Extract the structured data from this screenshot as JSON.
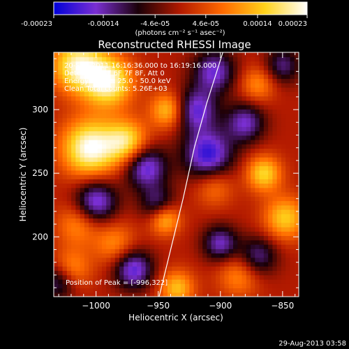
{
  "colorbar": {
    "tick_labels": [
      "-0.00023",
      "-0.00014",
      "-4.6e-05",
      "4.6e-05",
      "0.00014",
      "0.00023"
    ],
    "tick_values": [
      -0.00023,
      -0.00014,
      -4.6e-05,
      4.6e-05,
      0.00014,
      0.00023
    ],
    "range": [
      -0.00023,
      0.00023
    ],
    "units_label": "(photons cm⁻² s⁻¹ asec⁻²)",
    "colors": [
      "#0000d8",
      "#7a2fd2",
      "#1a0008",
      "#b31a00",
      "#ff6a00",
      "#ffd21a",
      "#ffffff"
    ]
  },
  "chart_data": {
    "type": "heatmap",
    "title": "Reconstructed RHESSI Image",
    "xlabel": "Heliocentric X (arcsec)",
    "ylabel": "Heliocentric Y (arcsec)",
    "xlim": [
      -1034,
      -837
    ],
    "ylim": [
      153,
      345
    ],
    "x_ticks": [
      -1000,
      -950,
      -900,
      -850
    ],
    "x_tick_labels": [
      "−1000",
      "−950",
      "−900",
      "−850"
    ],
    "y_ticks": [
      200,
      250,
      300
    ],
    "y_tick_labels": [
      "200",
      "250",
      "300"
    ],
    "annotations": [
      "20-Sep-2011 16:16:36.000 to 16:19:16.000",
      "Detectors: 4F 6F 7F 8F, Att 0",
      "Energy Range: 25.0 - 50.0 keV",
      "Clean     Total counts: 5.26E+03"
    ],
    "peak_label": "Position of Peak = [-996,322]",
    "peak": [
      -996,
      322
    ],
    "limb_curve": [
      [
        -950,
        150
      ],
      [
        -940,
        190
      ],
      [
        -930,
        230
      ],
      [
        -921,
        270
      ],
      [
        -911,
        305
      ],
      [
        -898,
        345
      ]
    ],
    "sources": [
      {
        "x": -1015,
        "y": 335,
        "amp": 0.0002,
        "s": 15
      },
      {
        "x": -990,
        "y": 322,
        "amp": 0.00021,
        "s": 14
      },
      {
        "x": -1005,
        "y": 270,
        "amp": 0.00023,
        "s": 16
      },
      {
        "x": -975,
        "y": 275,
        "amp": 0.00017,
        "s": 12
      },
      {
        "x": -942,
        "y": 300,
        "amp": 0.00015,
        "s": 10
      },
      {
        "x": -945,
        "y": 215,
        "amp": 0.00017,
        "s": 9
      },
      {
        "x": -848,
        "y": 215,
        "amp": 0.00015,
        "s": 12
      },
      {
        "x": -865,
        "y": 250,
        "amp": 0.00016,
        "s": 10
      },
      {
        "x": -935,
        "y": 160,
        "amp": 0.00014,
        "s": 10
      },
      {
        "x": -1015,
        "y": 210,
        "amp": 0.0001,
        "s": 12
      },
      {
        "x": -985,
        "y": 195,
        "amp": 0.0001,
        "s": 12
      },
      {
        "x": -1020,
        "y": 175,
        "amp": 0.00011,
        "s": 11
      },
      {
        "x": -885,
        "y": 170,
        "amp": 0.0001,
        "s": 12
      },
      {
        "x": -905,
        "y": 240,
        "amp": 9e-05,
        "s": 11
      },
      {
        "x": -870,
        "y": 320,
        "amp": 0.0001,
        "s": 10
      },
      {
        "x": -960,
        "y": 255,
        "amp": -0.00018,
        "s": 12
      },
      {
        "x": -920,
        "y": 300,
        "amp": -0.00017,
        "s": 12
      },
      {
        "x": -910,
        "y": 265,
        "amp": -0.0002,
        "s": 14
      },
      {
        "x": -880,
        "y": 290,
        "amp": -0.00015,
        "s": 11
      },
      {
        "x": -1000,
        "y": 228,
        "amp": -0.00018,
        "s": 12
      },
      {
        "x": -970,
        "y": 175,
        "amp": -0.00018,
        "s": 11
      },
      {
        "x": -950,
        "y": 225,
        "amp": -0.00014,
        "s": 10
      },
      {
        "x": -900,
        "y": 195,
        "amp": -0.00015,
        "s": 10
      },
      {
        "x": -1030,
        "y": 165,
        "amp": -0.00013,
        "s": 10
      },
      {
        "x": -905,
        "y": 330,
        "amp": -0.00016,
        "s": 12
      },
      {
        "x": -850,
        "y": 335,
        "amp": -0.00012,
        "s": 10
      },
      {
        "x": -870,
        "y": 185,
        "amp": -0.00013,
        "s": 11
      }
    ]
  },
  "footer": {
    "timestamp": "29-Aug-2013 03:58"
  }
}
